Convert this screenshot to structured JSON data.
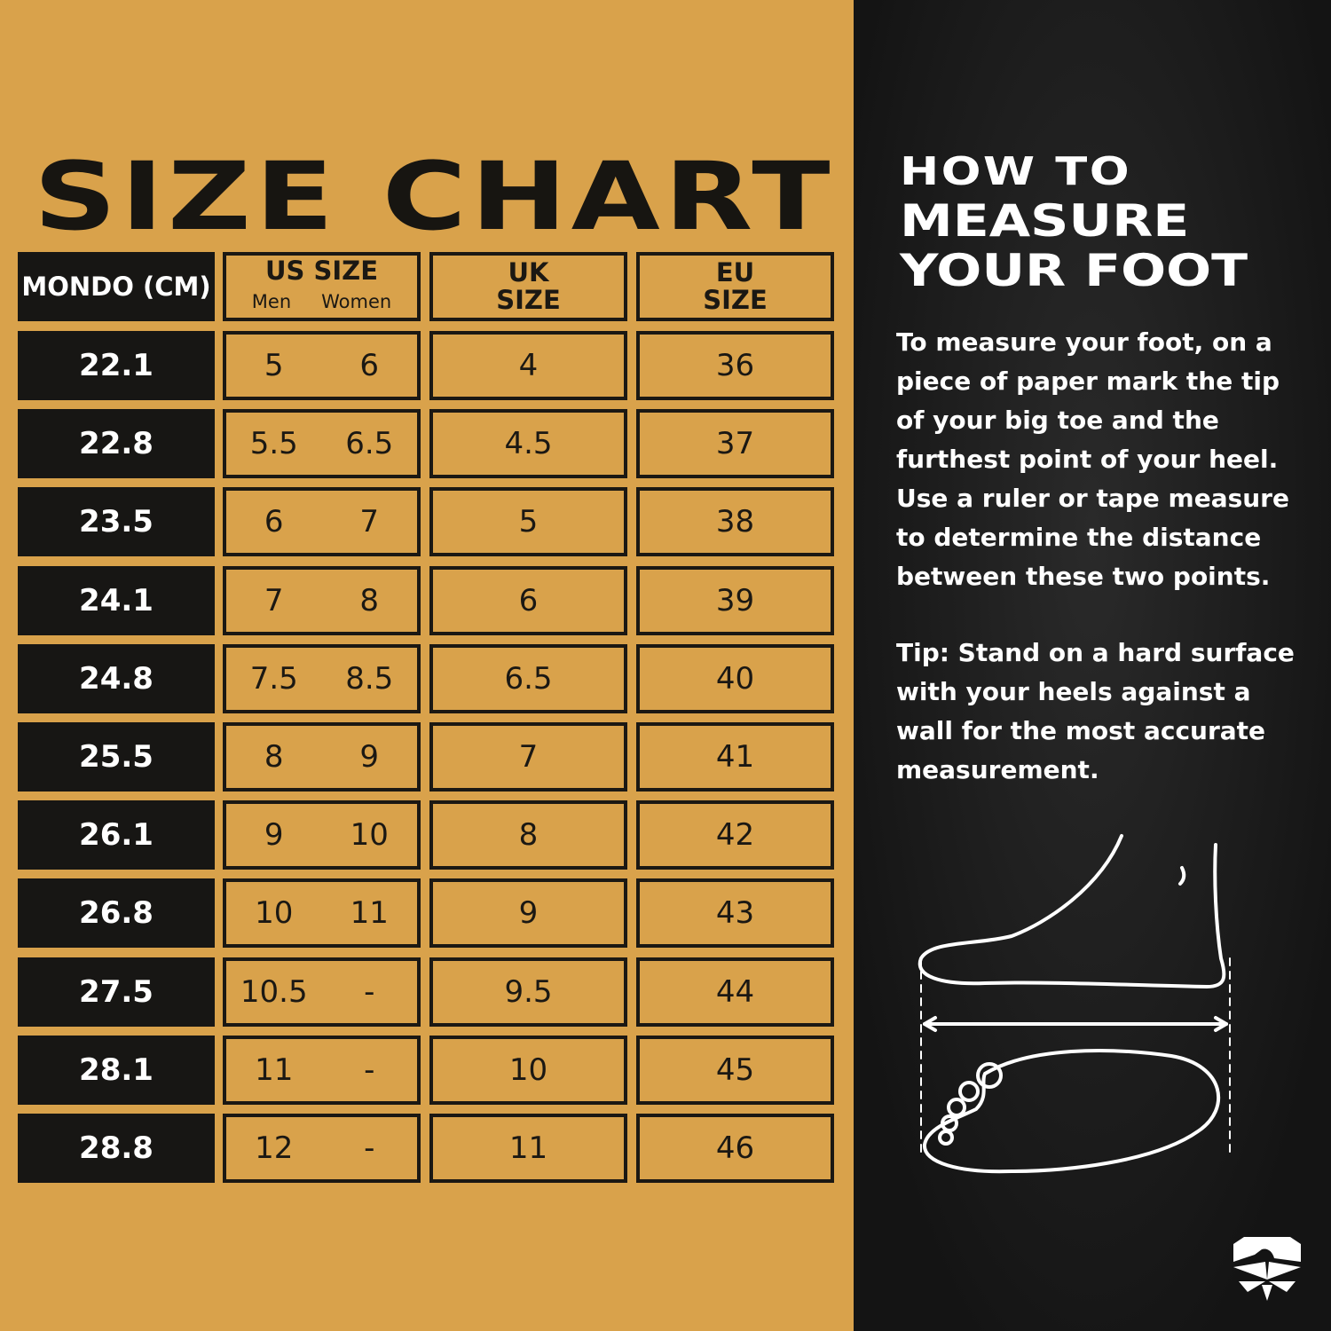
{
  "title": "SIZE CHART",
  "headers": {
    "mondo": "MONDO (CM)",
    "us": "US SIZE",
    "us_men": "Men",
    "us_women": "Women",
    "uk": "UK SIZE",
    "eu": "EU SIZE"
  },
  "rows": [
    {
      "mondo": "22.1",
      "men": "5",
      "women": "6",
      "uk": "4",
      "eu": "36"
    },
    {
      "mondo": "22.8",
      "men": "5.5",
      "women": "6.5",
      "uk": "4.5",
      "eu": "37"
    },
    {
      "mondo": "23.5",
      "men": "6",
      "women": "7",
      "uk": "5",
      "eu": "38"
    },
    {
      "mondo": "24.1",
      "men": "7",
      "women": "8",
      "uk": "6",
      "eu": "39"
    },
    {
      "mondo": "24.8",
      "men": "7.5",
      "women": "8.5",
      "uk": "6.5",
      "eu": "40"
    },
    {
      "mondo": "25.5",
      "men": "8",
      "women": "9",
      "uk": "7",
      "eu": "41"
    },
    {
      "mondo": "26.1",
      "men": "9",
      "women": "10",
      "uk": "8",
      "eu": "42"
    },
    {
      "mondo": "26.8",
      "men": "10",
      "women": "11",
      "uk": "9",
      "eu": "43"
    },
    {
      "mondo": "27.5",
      "men": "10.5",
      "women": "-",
      "uk": "9.5",
      "eu": "44"
    },
    {
      "mondo": "28.1",
      "men": "11",
      "women": "-",
      "uk": "10",
      "eu": "45"
    },
    {
      "mondo": "28.8",
      "men": "12",
      "women": "-",
      "uk": "11",
      "eu": "46"
    }
  ],
  "howto": {
    "line1": "HOW TO",
    "line2": "MEASURE",
    "line3": "YOUR FOOT",
    "instructions": "To measure your foot, on a piece of paper mark the tip of your big toe and the furthest point of your heel. Use a ruler or tape measure to determine the distance between these two points.",
    "tip": "Tip:  Stand on a hard surface with your heels against a wall for the most accurate measurement."
  },
  "icons": {
    "illustration": "foot-measurement-illustration",
    "logo": "eagle-shield-logo"
  },
  "colors": {
    "gold": "#d9a24b",
    "dark": "#171614"
  }
}
